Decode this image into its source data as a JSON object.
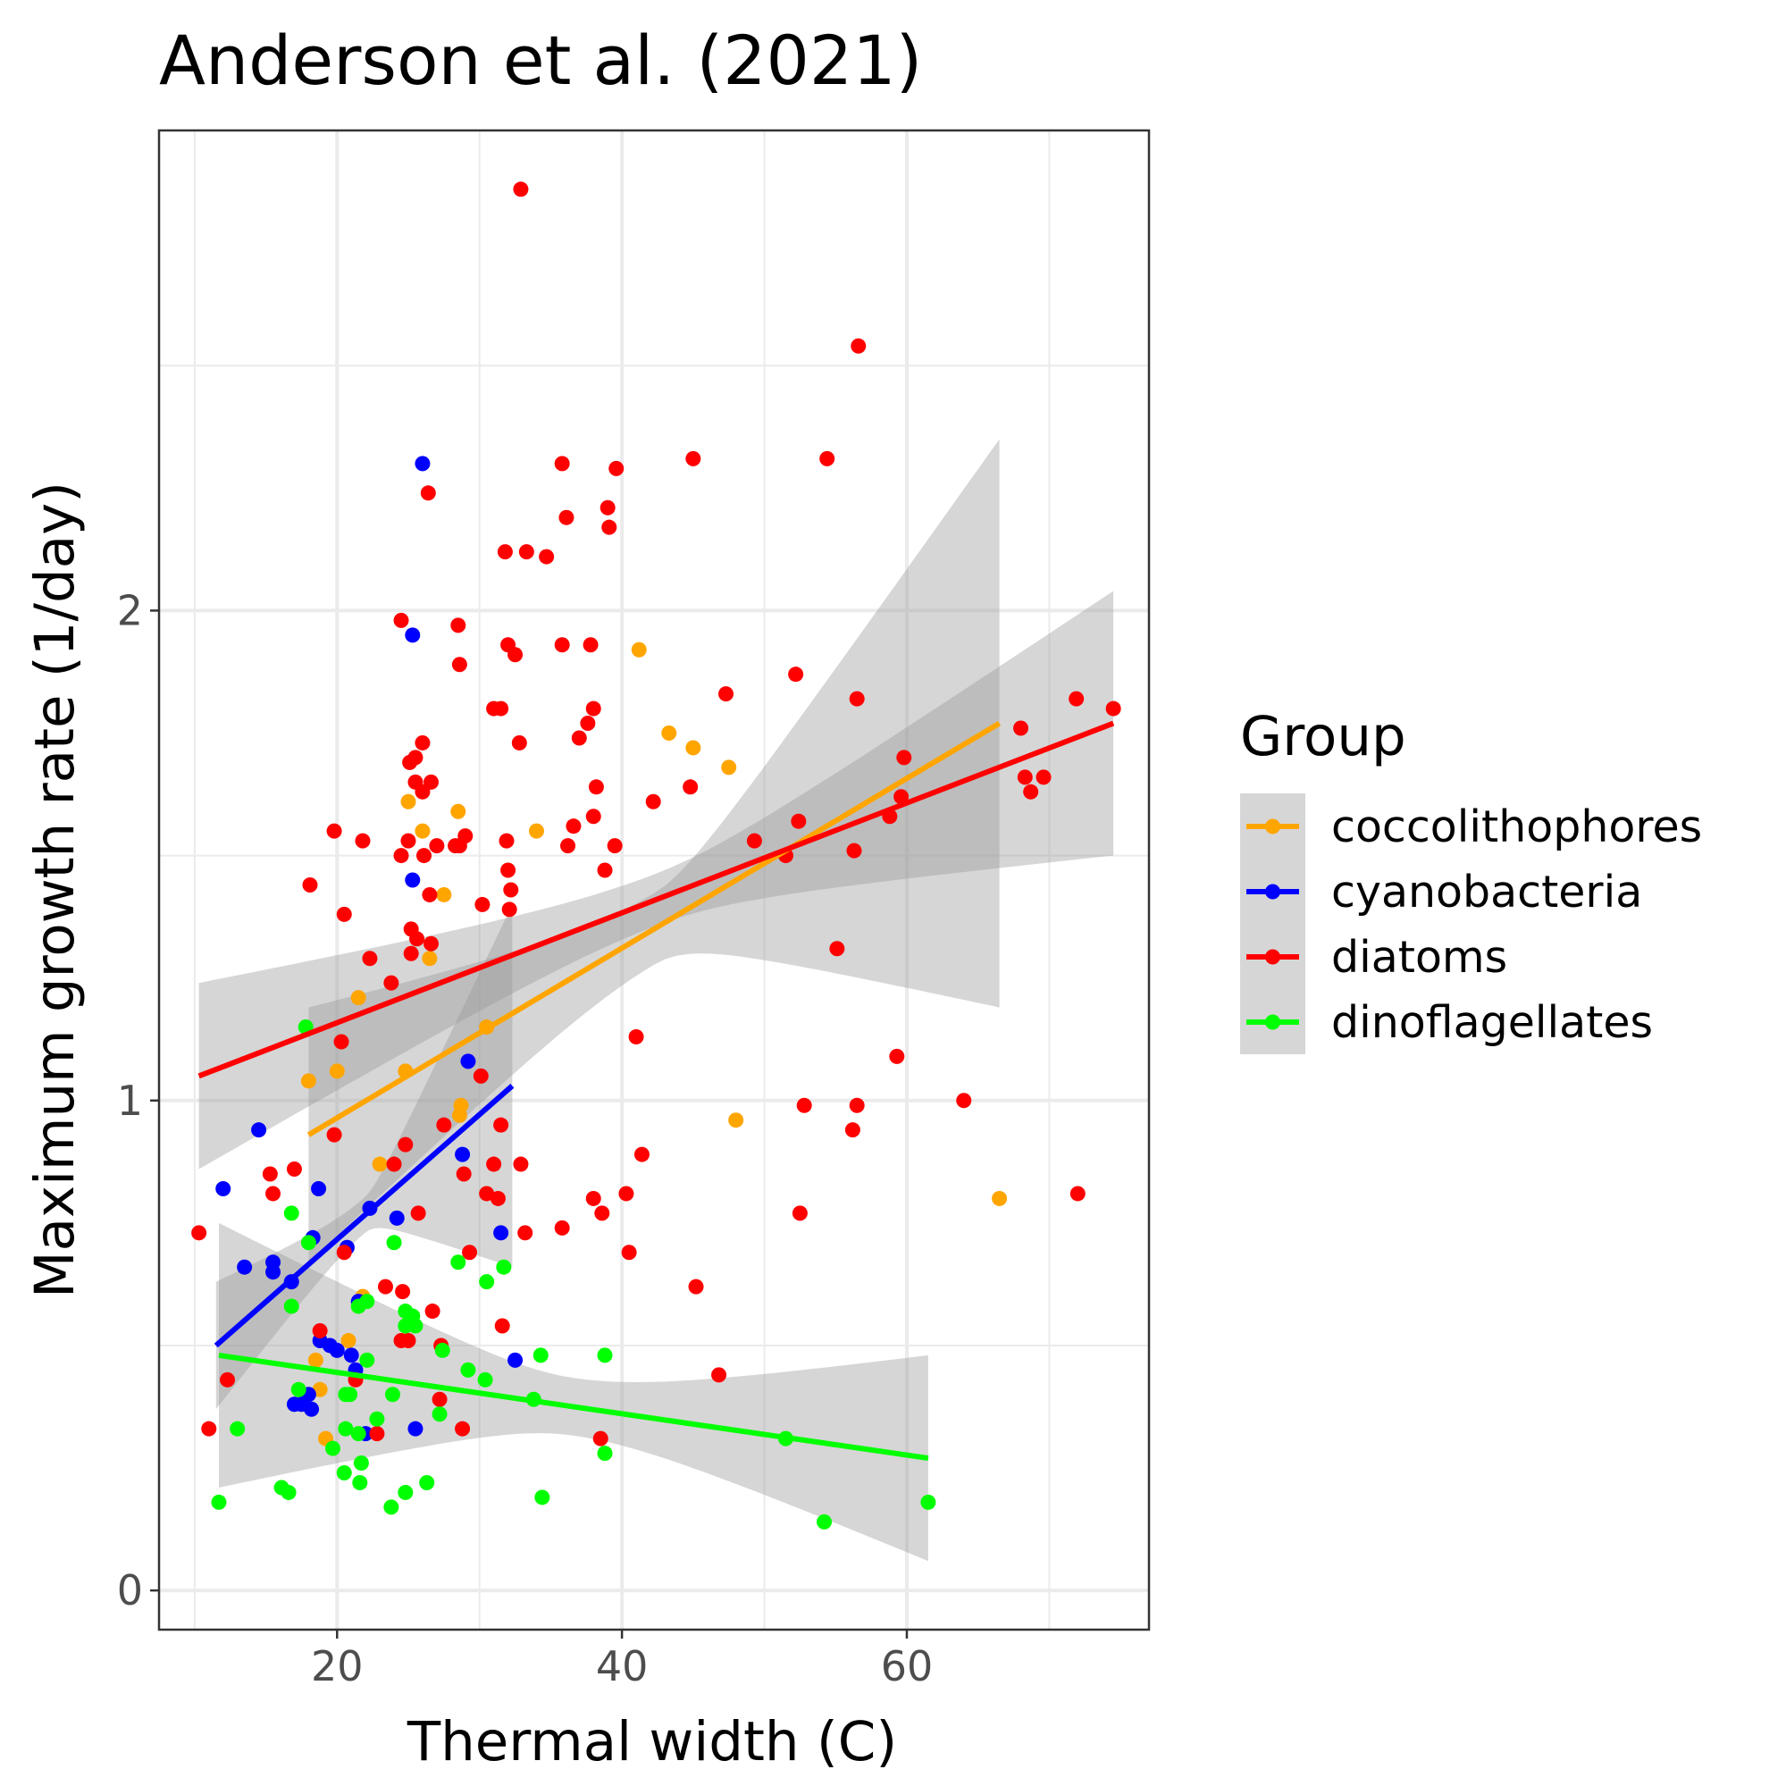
{
  "chart_data": {
    "type": "scatter",
    "title": "Anderson et al. (2021)",
    "xlabel": "Thermal width (C)",
    "ylabel": "Maximum growth rate (1/day)",
    "xlim": [
      7.5,
      77
    ],
    "ylim": [
      -0.08,
      2.98
    ],
    "xticks": [
      20,
      40,
      60
    ],
    "yticks": [
      0,
      1,
      2
    ],
    "x_tick_labels": [
      "20",
      "40",
      "60"
    ],
    "y_tick_labels": [
      "0",
      "1",
      "2"
    ],
    "grid": true,
    "legend": {
      "title": "Group",
      "position": "right"
    },
    "series": [
      {
        "name": "coccolithophores",
        "color": "#ffa500",
        "points": [
          [
            25,
            1.61
          ],
          [
            26,
            1.55
          ],
          [
            28.5,
            1.59
          ],
          [
            27.5,
            1.42
          ],
          [
            26.5,
            1.29
          ],
          [
            21.5,
            1.21
          ],
          [
            30.5,
            1.15
          ],
          [
            18,
            1.04
          ],
          [
            20,
            1.06
          ],
          [
            24.8,
            1.06
          ],
          [
            28.7,
            0.99
          ],
          [
            28.6,
            0.97
          ],
          [
            23,
            0.87
          ],
          [
            21.8,
            0.6
          ],
          [
            20.8,
            0.51
          ],
          [
            18.5,
            0.47
          ],
          [
            18.8,
            0.41
          ],
          [
            19.2,
            0.31
          ],
          [
            34,
            1.55
          ],
          [
            41.2,
            1.92
          ],
          [
            43.3,
            1.75
          ],
          [
            45,
            1.72
          ],
          [
            47.5,
            1.68
          ],
          [
            48,
            0.96
          ],
          [
            66.5,
            0.8
          ]
        ],
        "fit": {
          "x": [
            18,
            66.5
          ],
          "y": [
            0.93,
            1.77
          ],
          "ci_lower": [
            0.77,
            1.2
          ],
          "ci_upper": [
            1.19,
            2.35
          ]
        }
      },
      {
        "name": "cyanobacteria",
        "color": "#0000ff",
        "points": [
          [
            26,
            2.3
          ],
          [
            25.3,
            1.95
          ],
          [
            25.3,
            1.45
          ],
          [
            14.5,
            0.94
          ],
          [
            12,
            0.82
          ],
          [
            13.5,
            0.66
          ],
          [
            15.5,
            0.67
          ],
          [
            15.5,
            0.65
          ],
          [
            16.8,
            0.63
          ],
          [
            18.8,
            0.51
          ],
          [
            19.5,
            0.5
          ],
          [
            20,
            0.49
          ],
          [
            21,
            0.48
          ],
          [
            21.3,
            0.45
          ],
          [
            17,
            0.38
          ],
          [
            17.5,
            0.38
          ],
          [
            18,
            0.4
          ],
          [
            18.2,
            0.37
          ],
          [
            22,
            0.32
          ],
          [
            25.5,
            0.33
          ],
          [
            29.2,
            1.08
          ],
          [
            28.8,
            0.89
          ],
          [
            31.5,
            0.73
          ],
          [
            32.5,
            0.47
          ],
          [
            24.2,
            0.76
          ],
          [
            22.3,
            0.78
          ],
          [
            20.7,
            0.7
          ],
          [
            18.3,
            0.72
          ],
          [
            18.7,
            0.82
          ],
          [
            21.5,
            0.59
          ]
        ],
        "fit": {
          "x": [
            11.5,
            32.3
          ],
          "y": [
            0.5,
            1.03
          ],
          "ci_lower": [
            0.38,
            0.66
          ],
          "ci_upper": [
            0.63,
            1.4
          ]
        }
      },
      {
        "name": "diatoms",
        "color": "#ff0000",
        "points": [
          [
            32.9,
            2.86
          ],
          [
            56.6,
            2.54
          ],
          [
            26.4,
            2.24
          ],
          [
            35.8,
            2.3
          ],
          [
            36.1,
            2.19
          ],
          [
            39.6,
            2.29
          ],
          [
            45,
            2.31
          ],
          [
            54.4,
            2.31
          ],
          [
            39,
            2.21
          ],
          [
            39.1,
            2.17
          ],
          [
            31.8,
            2.12
          ],
          [
            33.3,
            2.12
          ],
          [
            34.7,
            2.11
          ],
          [
            24.5,
            1.98
          ],
          [
            28.5,
            1.97
          ],
          [
            32,
            1.93
          ],
          [
            32.5,
            1.91
          ],
          [
            28.6,
            1.89
          ],
          [
            35.8,
            1.93
          ],
          [
            37.8,
            1.93
          ],
          [
            31,
            1.8
          ],
          [
            31.5,
            1.8
          ],
          [
            37.6,
            1.77
          ],
          [
            38,
            1.8
          ],
          [
            37,
            1.74
          ],
          [
            47.3,
            1.83
          ],
          [
            52.2,
            1.87
          ],
          [
            56.5,
            1.82
          ],
          [
            68,
            1.76
          ],
          [
            71.9,
            1.82
          ],
          [
            74.5,
            1.8
          ],
          [
            25.1,
            1.69
          ],
          [
            25.5,
            1.7
          ],
          [
            26,
            1.73
          ],
          [
            32.8,
            1.73
          ],
          [
            25.5,
            1.65
          ],
          [
            26,
            1.63
          ],
          [
            26.6,
            1.65
          ],
          [
            38.2,
            1.64
          ],
          [
            42.2,
            1.61
          ],
          [
            44.8,
            1.64
          ],
          [
            59.8,
            1.7
          ],
          [
            59.6,
            1.62
          ],
          [
            58.8,
            1.58
          ],
          [
            68.3,
            1.66
          ],
          [
            69.6,
            1.66
          ],
          [
            68.7,
            1.63
          ],
          [
            19.8,
            1.55
          ],
          [
            21.8,
            1.53
          ],
          [
            25,
            1.53
          ],
          [
            26.1,
            1.5
          ],
          [
            27,
            1.52
          ],
          [
            28.3,
            1.52
          ],
          [
            28.6,
            1.52
          ],
          [
            29,
            1.54
          ],
          [
            24.5,
            1.5
          ],
          [
            31.9,
            1.53
          ],
          [
            36.2,
            1.52
          ],
          [
            36.6,
            1.56
          ],
          [
            38,
            1.58
          ],
          [
            39.5,
            1.52
          ],
          [
            49.3,
            1.53
          ],
          [
            52.4,
            1.57
          ],
          [
            51.5,
            1.5
          ],
          [
            56.3,
            1.51
          ],
          [
            18.1,
            1.44
          ],
          [
            26.5,
            1.42
          ],
          [
            30.2,
            1.4
          ],
          [
            32,
            1.47
          ],
          [
            32.2,
            1.43
          ],
          [
            32.1,
            1.39
          ],
          [
            38.8,
            1.47
          ],
          [
            20.5,
            1.38
          ],
          [
            25.2,
            1.35
          ],
          [
            25.6,
            1.33
          ],
          [
            26.6,
            1.32
          ],
          [
            25.2,
            1.3
          ],
          [
            22.3,
            1.29
          ],
          [
            55.1,
            1.31
          ],
          [
            23.8,
            1.24
          ],
          [
            20.3,
            1.12
          ],
          [
            41,
            1.13
          ],
          [
            59.3,
            1.09
          ],
          [
            30.1,
            1.05
          ],
          [
            52.8,
            0.99
          ],
          [
            56.5,
            0.99
          ],
          [
            64,
            1.0
          ],
          [
            19.8,
            0.93
          ],
          [
            24.8,
            0.91
          ],
          [
            27.5,
            0.95
          ],
          [
            31.5,
            0.95
          ],
          [
            56.2,
            0.94
          ],
          [
            41.4,
            0.89
          ],
          [
            15.3,
            0.85
          ],
          [
            17,
            0.86
          ],
          [
            24,
            0.87
          ],
          [
            31,
            0.87
          ],
          [
            32.9,
            0.87
          ],
          [
            28.9,
            0.85
          ],
          [
            30.5,
            0.81
          ],
          [
            15.5,
            0.81
          ],
          [
            31.3,
            0.8
          ],
          [
            38,
            0.8
          ],
          [
            40.3,
            0.81
          ],
          [
            72,
            0.81
          ],
          [
            38.6,
            0.77
          ],
          [
            52.5,
            0.77
          ],
          [
            25.7,
            0.77
          ],
          [
            10.3,
            0.73
          ],
          [
            33.2,
            0.73
          ],
          [
            35.8,
            0.74
          ],
          [
            20.5,
            0.69
          ],
          [
            29.3,
            0.69
          ],
          [
            40.5,
            0.69
          ],
          [
            23.4,
            0.62
          ],
          [
            24.6,
            0.61
          ],
          [
            45.2,
            0.62
          ],
          [
            26.7,
            0.57
          ],
          [
            31.6,
            0.54
          ],
          [
            18.8,
            0.53
          ],
          [
            24.5,
            0.51
          ],
          [
            25,
            0.51
          ],
          [
            27.3,
            0.5
          ],
          [
            21.3,
            0.43
          ],
          [
            12.3,
            0.43
          ],
          [
            27.2,
            0.39
          ],
          [
            46.8,
            0.44
          ],
          [
            11,
            0.33
          ],
          [
            22.8,
            0.32
          ],
          [
            28.8,
            0.33
          ],
          [
            38.5,
            0.31
          ]
        ],
        "fit": {
          "x": [
            10.3,
            74.5
          ],
          "y": [
            1.05,
            1.77
          ],
          "ci_lower": [
            0.86,
            1.52
          ],
          "ci_upper": [
            1.24,
            2.04
          ]
        }
      },
      {
        "name": "dinoflagellates",
        "color": "#00ff00",
        "points": [
          [
            17.8,
            1.15
          ],
          [
            16.8,
            0.77
          ],
          [
            18,
            0.71
          ],
          [
            24,
            0.71
          ],
          [
            16.8,
            0.58
          ],
          [
            21.5,
            0.58
          ],
          [
            22.1,
            0.59
          ],
          [
            24.8,
            0.57
          ],
          [
            25.3,
            0.56
          ],
          [
            24.8,
            0.54
          ],
          [
            25.5,
            0.54
          ],
          [
            28.5,
            0.67
          ],
          [
            30.5,
            0.63
          ],
          [
            31.7,
            0.66
          ],
          [
            27.4,
            0.49
          ],
          [
            34.3,
            0.48
          ],
          [
            38.8,
            0.48
          ],
          [
            22.1,
            0.47
          ],
          [
            29.2,
            0.45
          ],
          [
            30.4,
            0.43
          ],
          [
            17.3,
            0.41
          ],
          [
            20.6,
            0.4
          ],
          [
            20.9,
            0.4
          ],
          [
            23.9,
            0.4
          ],
          [
            33.8,
            0.39
          ],
          [
            27.2,
            0.36
          ],
          [
            22.8,
            0.35
          ],
          [
            13,
            0.33
          ],
          [
            20.6,
            0.33
          ],
          [
            21.5,
            0.32
          ],
          [
            19.7,
            0.29
          ],
          [
            21.7,
            0.26
          ],
          [
            20.5,
            0.24
          ],
          [
            21.6,
            0.22
          ],
          [
            26.3,
            0.22
          ],
          [
            16.1,
            0.21
          ],
          [
            16.6,
            0.2
          ],
          [
            24.8,
            0.2
          ],
          [
            11.7,
            0.18
          ],
          [
            34.4,
            0.19
          ],
          [
            23.8,
            0.17
          ],
          [
            51.5,
            0.31
          ],
          [
            38.8,
            0.28
          ],
          [
            54.2,
            0.14
          ],
          [
            61.5,
            0.18
          ]
        ],
        "fit": {
          "x": [
            11.7,
            61.5
          ],
          "y": [
            0.48,
            0.27
          ],
          "ci_lower": [
            0.21,
            0.06
          ],
          "ci_upper": [
            0.75,
            0.48
          ]
        }
      }
    ]
  }
}
